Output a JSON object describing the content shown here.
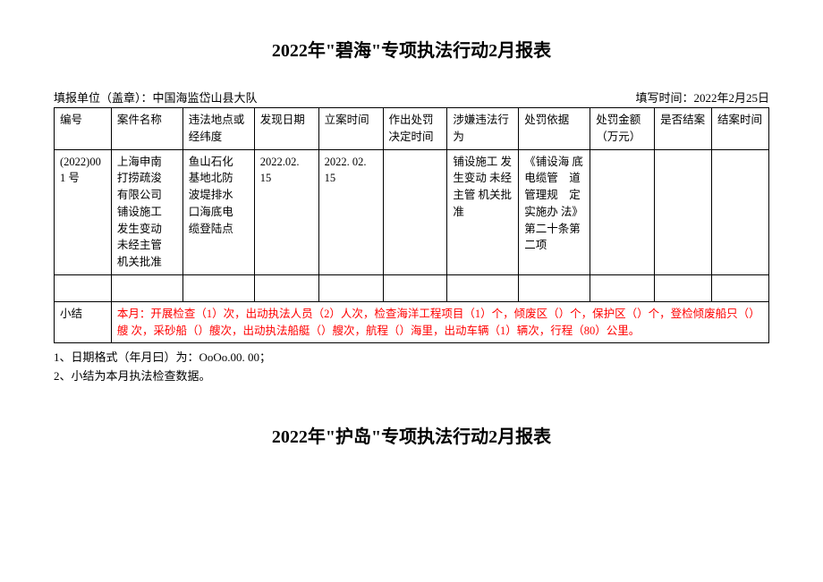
{
  "title": "2022年\"碧海\"专项执法行动2月报表",
  "meta": {
    "reporting_unit_label": "填报单位（盖章）：中国海监岱山县大队",
    "fill_time_label": "填写时间：2022年2月25日"
  },
  "headers": [
    "编号",
    "案件名称",
    "违法地点或经纬度",
    "发现日期",
    "立案时间",
    "作出处罚决定时间",
    "涉嫌违法行为",
    "处罚依据",
    "处罚金额（万元）",
    "是否结案",
    "结案时间"
  ],
  "rows": [
    {
      "id": "(2022)001 号",
      "case_name": "上海申南　打捞疏浚　有限公司　铺设施工　发生变动　未经主管　机关批准",
      "location": "鱼山石化　基地北防　波堤排水　口海底电　缆登陆点",
      "discover_date": "2022.02. 15",
      "filing_date": "2022. 02. 15",
      "decision_date": "",
      "violation": "铺设施工 发生变动 未经主管 机关批准",
      "basis": "《铺设海 底电缆管　道管理规　定实施办 法》第二十条第二项",
      "amount": "",
      "closed": "",
      "close_date": ""
    }
  ],
  "summary": {
    "label": "小结",
    "content": "本月：开展检查（1）次，出动执法人员（2）人次，检查海洋工程项目（1）个，倾废区（）个，保护区（）个，登检倾废船只（）艘 次，采砂船（）艘次，出动执法船艇（）艘次，航程（）海里，出动车辆（1）辆次，行程（80）公里。"
  },
  "notes": [
    "1、日期格式（年月曰）为：OoOo.00. 00；",
    "2、小结为本月执法检查数据。"
  ],
  "title2": "2022年\"护岛\"专项执法行动2月报表"
}
